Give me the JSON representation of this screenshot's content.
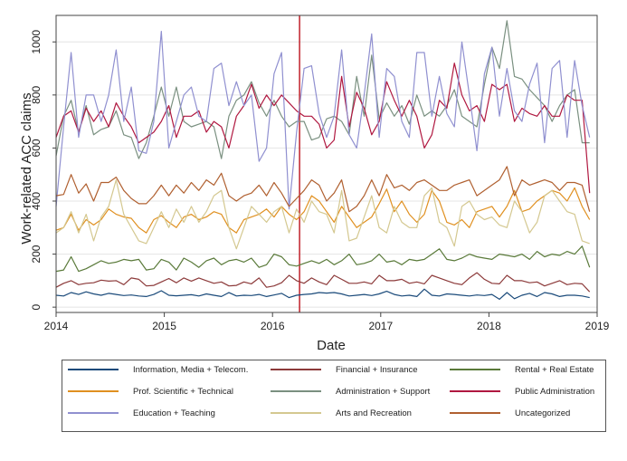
{
  "chart_data": {
    "type": "line",
    "ylabel": "Work-related ACC claims",
    "xlabel": "Date",
    "xlim": [
      2014,
      2019
    ],
    "ylim": [
      -20,
      1100
    ],
    "x_ticks": [
      "2014",
      "2015",
      "2016",
      "2017",
      "2018",
      "2019"
    ],
    "y_ticks": [
      "0",
      "200",
      "400",
      "600",
      "800",
      "1000"
    ],
    "y_tick_values": [
      0,
      200,
      400,
      600,
      800,
      1000
    ],
    "grid": true,
    "legend_position": "bottom",
    "reference_line": {
      "x": 2016.25,
      "color": "#c0202a"
    },
    "series": [
      {
        "name": "Information, Media + Telecom.",
        "color": "#1a4a7a",
        "values": [
          45,
          42,
          55,
          48,
          58,
          50,
          45,
          52,
          48,
          44,
          46,
          42,
          40,
          48,
          62,
          45,
          43,
          45,
          47,
          42,
          50,
          45,
          40,
          55,
          42,
          45,
          44,
          48,
          40,
          46,
          52,
          36,
          45,
          48,
          50,
          55,
          53,
          55,
          50,
          42,
          45,
          48,
          44,
          50,
          60,
          48,
          42,
          45,
          40,
          68,
          45,
          42,
          50,
          48,
          45,
          42,
          46,
          44,
          48,
          30,
          55,
          32,
          45,
          52,
          40,
          55,
          50,
          40,
          45,
          45,
          42,
          36
        ]
      },
      {
        "name": "Financial + Insurance",
        "color": "#8c3a3a",
        "values": [
          75,
          90,
          100,
          85,
          90,
          92,
          102,
          98,
          100,
          85,
          110,
          105,
          80,
          82,
          95,
          108,
          92,
          110,
          98,
          110,
          100,
          90,
          95,
          80,
          82,
          95,
          88,
          110,
          75,
          80,
          92,
          120,
          100,
          90,
          110,
          95,
          85,
          120,
          105,
          90,
          90,
          95,
          88,
          120,
          100,
          100,
          105,
          90,
          95,
          88,
          120,
          110,
          100,
          90,
          85,
          110,
          130,
          105,
          90,
          88,
          120,
          100,
          100,
          92,
          95,
          80,
          90,
          100,
          85,
          90,
          88,
          58
        ]
      },
      {
        "name": "Rental + Real Estate",
        "color": "#5a7a3a",
        "values": [
          135,
          140,
          190,
          135,
          145,
          160,
          175,
          165,
          170,
          180,
          175,
          180,
          140,
          145,
          180,
          170,
          140,
          185,
          170,
          150,
          175,
          185,
          160,
          175,
          180,
          170,
          185,
          150,
          160,
          200,
          190,
          160,
          155,
          165,
          175,
          165,
          180,
          160,
          175,
          200,
          160,
          165,
          175,
          200,
          170,
          175,
          160,
          180,
          175,
          180,
          200,
          220,
          180,
          175,
          185,
          200,
          190,
          185,
          180,
          200,
          195,
          190,
          200,
          180,
          210,
          190,
          200,
          195,
          210,
          200,
          230,
          150
        ]
      },
      {
        "name": "Prof. Scientific + Technical",
        "color": "#e09020",
        "values": [
          290,
          300,
          350,
          290,
          330,
          310,
          330,
          370,
          350,
          340,
          335,
          300,
          280,
          330,
          345,
          320,
          300,
          340,
          350,
          330,
          340,
          360,
          350,
          300,
          280,
          330,
          340,
          350,
          370,
          340,
          380,
          350,
          330,
          360,
          420,
          400,
          360,
          320,
          380,
          340,
          300,
          320,
          340,
          390,
          445,
          360,
          400,
          350,
          320,
          350,
          440,
          400,
          320,
          310,
          330,
          300,
          360,
          370,
          380,
          340,
          380,
          440,
          360,
          370,
          400,
          420,
          440,
          430,
          400,
          450,
          380,
          330
        ]
      },
      {
        "name": "Administration + Support",
        "color": "#7a9080",
        "values": [
          570,
          720,
          780,
          660,
          760,
          650,
          670,
          680,
          740,
          650,
          640,
          560,
          620,
          720,
          830,
          720,
          830,
          700,
          680,
          690,
          700,
          680,
          560,
          720,
          780,
          800,
          850,
          770,
          720,
          780,
          720,
          680,
          700,
          700,
          630,
          640,
          710,
          720,
          700,
          650,
          870,
          720,
          950,
          710,
          770,
          720,
          760,
          690,
          800,
          720,
          740,
          720,
          760,
          820,
          720,
          700,
          680,
          840,
          980,
          900,
          1080,
          870,
          860,
          820,
          790,
          760,
          700,
          760,
          800,
          820,
          620,
          620
        ]
      },
      {
        "name": "Public Administration",
        "color": "#b01840",
        "values": [
          640,
          720,
          740,
          660,
          750,
          700,
          740,
          680,
          770,
          720,
          680,
          620,
          640,
          660,
          700,
          760,
          640,
          720,
          720,
          740,
          660,
          700,
          680,
          600,
          720,
          760,
          840,
          750,
          800,
          760,
          800,
          770,
          740,
          720,
          720,
          690,
          600,
          630,
          870,
          680,
          810,
          750,
          650,
          700,
          850,
          780,
          720,
          780,
          720,
          600,
          650,
          780,
          750,
          920,
          800,
          740,
          760,
          700,
          840,
          820,
          840,
          700,
          750,
          730,
          720,
          760,
          720,
          720,
          800,
          780,
          780,
          430
        ]
      },
      {
        "name": "Education + Teaching",
        "color": "#9090d0",
        "values": [
          380,
          680,
          960,
          640,
          800,
          800,
          700,
          800,
          970,
          700,
          830,
          590,
          580,
          700,
          1040,
          600,
          700,
          800,
          830,
          720,
          700,
          900,
          920,
          760,
          850,
          760,
          800,
          550,
          600,
          880,
          960,
          370,
          660,
          900,
          910,
          730,
          640,
          720,
          970,
          650,
          600,
          800,
          1030,
          640,
          900,
          870,
          700,
          640,
          960,
          960,
          720,
          870,
          730,
          680,
          1000,
          800,
          590,
          880,
          980,
          720,
          900,
          740,
          700,
          840,
          920,
          620,
          900,
          930,
          640,
          930,
          760,
          640
        ]
      },
      {
        "name": "Arts and Recreation",
        "color": "#d4c890",
        "values": [
          280,
          300,
          360,
          280,
          350,
          250,
          340,
          380,
          480,
          350,
          300,
          250,
          240,
          300,
          360,
          300,
          370,
          320,
          380,
          320,
          360,
          420,
          440,
          300,
          220,
          300,
          380,
          350,
          320,
          360,
          380,
          280,
          370,
          320,
          400,
          360,
          350,
          280,
          440,
          250,
          260,
          340,
          420,
          300,
          280,
          380,
          320,
          300,
          300,
          420,
          450,
          320,
          300,
          230,
          380,
          400,
          350,
          330,
          340,
          310,
          300,
          400,
          360,
          280,
          320,
          420,
          440,
          400,
          360,
          350,
          250,
          240
        ]
      },
      {
        "name": "Uncategorized",
        "color": "#b06030",
        "values": [
          420,
          425,
          500,
          430,
          465,
          400,
          470,
          470,
          490,
          440,
          410,
          390,
          390,
          420,
          460,
          420,
          460,
          430,
          470,
          440,
          480,
          460,
          505,
          420,
          400,
          420,
          430,
          460,
          420,
          470,
          430,
          380,
          410,
          440,
          480,
          460,
          400,
          430,
          480,
          360,
          380,
          420,
          480,
          420,
          500,
          450,
          460,
          440,
          470,
          480,
          460,
          440,
          440,
          460,
          470,
          480,
          420,
          440,
          460,
          480,
          530,
          420,
          480,
          460,
          470,
          480,
          470,
          440,
          470,
          470,
          460,
          360
        ]
      }
    ]
  }
}
